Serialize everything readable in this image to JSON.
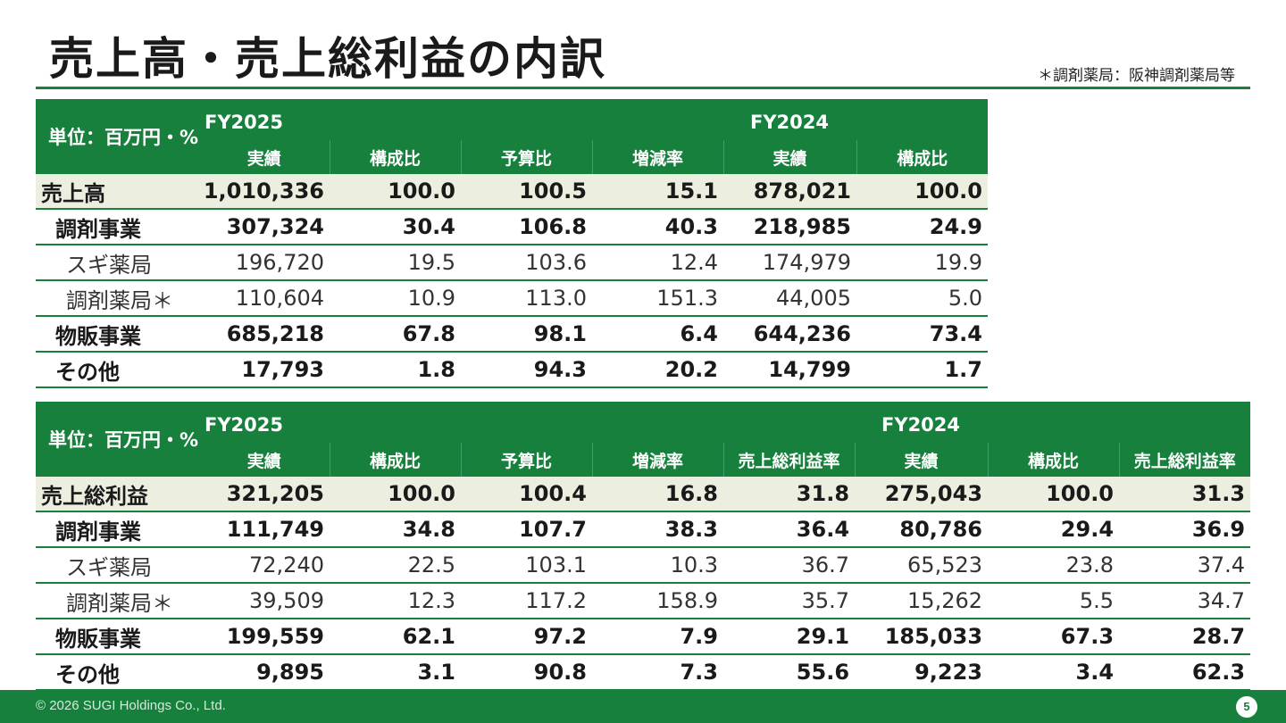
{
  "title": "売上高・売上総利益の内訳",
  "note": "＊調剤薬局：阪神調剤薬局等",
  "sales_table": {
    "unit": "単位：百万円・%",
    "fy_current": "FY2025",
    "fy_prior": "FY2024",
    "columns": [
      "実績",
      "構成比",
      "予算比",
      "増減率",
      "実績",
      "構成比"
    ],
    "rows": [
      {
        "label": "売上高",
        "level": "total",
        "values": [
          "1,010,336",
          "100.0",
          "100.5",
          "15.1",
          "878,021",
          "100.0"
        ]
      },
      {
        "label": "調剤事業",
        "level": "segment",
        "values": [
          "307,324",
          "30.4",
          "106.8",
          "40.3",
          "218,985",
          "24.9"
        ]
      },
      {
        "label": "スギ薬局",
        "level": "sub",
        "values": [
          "196,720",
          "19.5",
          "103.6",
          "12.4",
          "174,979",
          "19.9"
        ]
      },
      {
        "label": "調剤薬局＊",
        "level": "sub",
        "values": [
          "110,604",
          "10.9",
          "113.0",
          "151.3",
          "44,005",
          "5.0"
        ]
      },
      {
        "label": "物販事業",
        "level": "segment",
        "values": [
          "685,218",
          "67.8",
          "98.1",
          "6.4",
          "644,236",
          "73.4"
        ]
      },
      {
        "label": "その他",
        "level": "other",
        "values": [
          "17,793",
          "1.8",
          "94.3",
          "20.2",
          "14,799",
          "1.7"
        ]
      }
    ]
  },
  "gross_profit_table": {
    "unit": "単位：百万円・%",
    "fy_current": "FY2025",
    "fy_prior": "FY2024",
    "columns": [
      "実績",
      "構成比",
      "予算比",
      "増減率",
      "売上総利益率",
      "実績",
      "構成比",
      "売上総利益率"
    ],
    "rows": [
      {
        "label": "売上総利益",
        "level": "total",
        "values": [
          "321,205",
          "100.0",
          "100.4",
          "16.8",
          "31.8",
          "275,043",
          "100.0",
          "31.3"
        ]
      },
      {
        "label": "調剤事業",
        "level": "segment",
        "values": [
          "111,749",
          "34.8",
          "107.7",
          "38.3",
          "36.4",
          "80,786",
          "29.4",
          "36.9"
        ]
      },
      {
        "label": "スギ薬局",
        "level": "sub",
        "values": [
          "72,240",
          "22.5",
          "103.1",
          "10.3",
          "36.7",
          "65,523",
          "23.8",
          "37.4"
        ]
      },
      {
        "label": "調剤薬局＊",
        "level": "sub",
        "values": [
          "39,509",
          "12.3",
          "117.2",
          "158.9",
          "35.7",
          "15,262",
          "5.5",
          "34.7"
        ]
      },
      {
        "label": "物販事業",
        "level": "segment",
        "values": [
          "199,559",
          "62.1",
          "97.2",
          "7.9",
          "29.1",
          "185,033",
          "67.3",
          "28.7"
        ]
      },
      {
        "label": "その他",
        "level": "other",
        "values": [
          "9,895",
          "3.1",
          "90.8",
          "7.3",
          "55.6",
          "9,223",
          "3.4",
          "62.3"
        ]
      }
    ]
  },
  "footer": {
    "copyright": "© 2026 SUGI Holdings Co., Ltd.",
    "page_number": "5"
  },
  "colors": {
    "brand_green": "#16803c",
    "total_row_bg": "#ecefe0"
  }
}
